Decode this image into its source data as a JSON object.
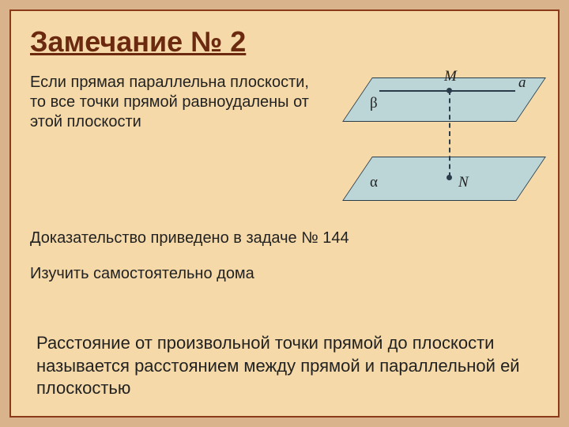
{
  "title": "Замечание № 2",
  "para1": "Если прямая параллельна плоскости, то все точки прямой равноудалены от этой плоскости",
  "proof": "Доказательство приведено в задаче № 144",
  "study": "Изучить самостоятельно дома",
  "definition": "Расстояние от произвольной точки прямой до плоскости называется расстоянием между прямой и параллельной ей плоскостью",
  "diagram": {
    "type": "diagram",
    "labels": {
      "M": "M",
      "N": "N",
      "a": "a",
      "alpha": "α",
      "beta": "β"
    },
    "plane_fill": "#bcd6d8",
    "plane_border": "#2a3b4a",
    "line_color": "#2a3b4a",
    "skew_deg": -34,
    "plane_width": 220,
    "plane_height": 56,
    "dash_style": "dashed"
  },
  "colors": {
    "outer_bg": "#d9b38c",
    "inner_bg": "#f5d9a8",
    "frame_border": "#8b3a1a",
    "title_color": "#6b2a10",
    "text_color": "#222222"
  },
  "fonts": {
    "body_family": "Comic Sans MS",
    "label_family": "Times New Roman",
    "title_size_pt": 36,
    "body_size_pt": 20,
    "definition_size_pt": 22,
    "label_size_pt": 19
  }
}
